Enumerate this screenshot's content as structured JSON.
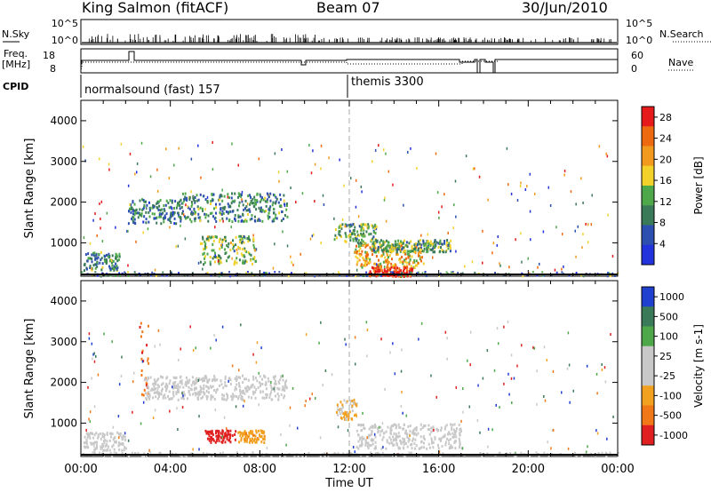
{
  "header": {
    "station": "King Salmon (fitACF)",
    "beam": "Beam 07",
    "date": "30/Jun/2010"
  },
  "panels": {
    "nsky_label": "N.Sky",
    "nsearch_label": "N.Search",
    "nsky_ticks": [
      "10^5",
      "10^0"
    ],
    "freq_label_1": "Freq.",
    "freq_label_2": "[MHz]",
    "freq_ticks": [
      "18",
      "8"
    ],
    "nave_label": "Nave",
    "nave_ticks": [
      "60",
      "0"
    ],
    "cpid_label": "CPID",
    "cpid_segments": [
      {
        "name": "normalsound (fast) 157",
        "start_hour": 0
      },
      {
        "name": "themis 3300",
        "start_hour": 12
      }
    ]
  },
  "axes": {
    "ylabel": "Slant Range [km]",
    "xlabel": "Time UT",
    "x_ticks": [
      "00:00",
      "04:00",
      "08:00",
      "12:00",
      "16:00",
      "20:00",
      "00:00"
    ],
    "y_ticks": [
      "1000",
      "2000",
      "3000",
      "4000"
    ]
  },
  "colors": {
    "power_scale": [
      "#2233dd",
      "#2c4fb0",
      "#3b7a58",
      "#4ea84a",
      "#f2d22a",
      "#f29a1e",
      "#ee6a10",
      "#e61a1a"
    ],
    "velocity_scale": [
      "#2040d0",
      "#3b7a58",
      "#4ea84a",
      "#c8c8c8",
      "#c8c8c8",
      "#f2a020",
      "#f07818",
      "#e02020"
    ]
  },
  "chart_data": [
    {
      "type": "heatmap",
      "name": "Power [dB]",
      "x": "time (hours UT)",
      "xlim": [
        0,
        24
      ],
      "ylim": [
        180,
        4500
      ],
      "colorbar": {
        "label": "Power [dB]",
        "ticks": [
          "4",
          "8",
          "12",
          "16",
          "20",
          "24",
          "28"
        ],
        "range": [
          0,
          30
        ]
      },
      "blobs": [
        {
          "t0": 0.1,
          "t1": 1.7,
          "r0": 350,
          "r1": 800,
          "value": 10
        },
        {
          "t0": 2.1,
          "t1": 4.5,
          "r0": 1500,
          "r1": 2100,
          "value": 9
        },
        {
          "t0": 4.4,
          "t1": 9.2,
          "r0": 1550,
          "r1": 2250,
          "value": 10
        },
        {
          "t0": 5.3,
          "t1": 7.8,
          "r0": 500,
          "r1": 1200,
          "value": 13
        },
        {
          "t0": 11.3,
          "t1": 13.2,
          "r0": 1000,
          "r1": 1500,
          "value": 13
        },
        {
          "t0": 12.2,
          "t1": 15.3,
          "r0": 400,
          "r1": 1000,
          "value": 19
        },
        {
          "t0": 12.8,
          "t1": 14.8,
          "r0": 200,
          "r1": 430,
          "value": 28
        },
        {
          "t0": 13.0,
          "t1": 16.5,
          "r0": 800,
          "r1": 1100,
          "value": 12
        }
      ]
    },
    {
      "type": "heatmap",
      "name": "Velocity [m s-1]",
      "x": "time (hours UT)",
      "xlim": [
        0,
        24
      ],
      "ylim": [
        180,
        4500
      ],
      "colorbar": {
        "label": "Velocity [m s-1]",
        "ticks": [
          "1000",
          "500",
          "100",
          "25",
          "-25",
          "-100",
          "-500",
          "-1000"
        ],
        "range": [
          -1000,
          1000
        ]
      },
      "blobs": [
        {
          "t0": 0.1,
          "t1": 2.0,
          "r0": 350,
          "r1": 800,
          "value": 0
        },
        {
          "t0": 2.6,
          "t1": 3.0,
          "r0": 1700,
          "r1": 3500,
          "value": -700
        },
        {
          "t0": 2.8,
          "t1": 9.2,
          "r0": 1600,
          "r1": 2200,
          "value": 0
        },
        {
          "t0": 5.5,
          "t1": 6.9,
          "r0": 550,
          "r1": 850,
          "value": -900
        },
        {
          "t0": 7.0,
          "t1": 8.2,
          "r0": 550,
          "r1": 850,
          "value": -400
        },
        {
          "t0": 11.4,
          "t1": 12.3,
          "r0": 1100,
          "r1": 1600,
          "value": -300
        },
        {
          "t0": 12.3,
          "t1": 17.0,
          "r0": 400,
          "r1": 1000,
          "value": 0
        }
      ]
    }
  ]
}
